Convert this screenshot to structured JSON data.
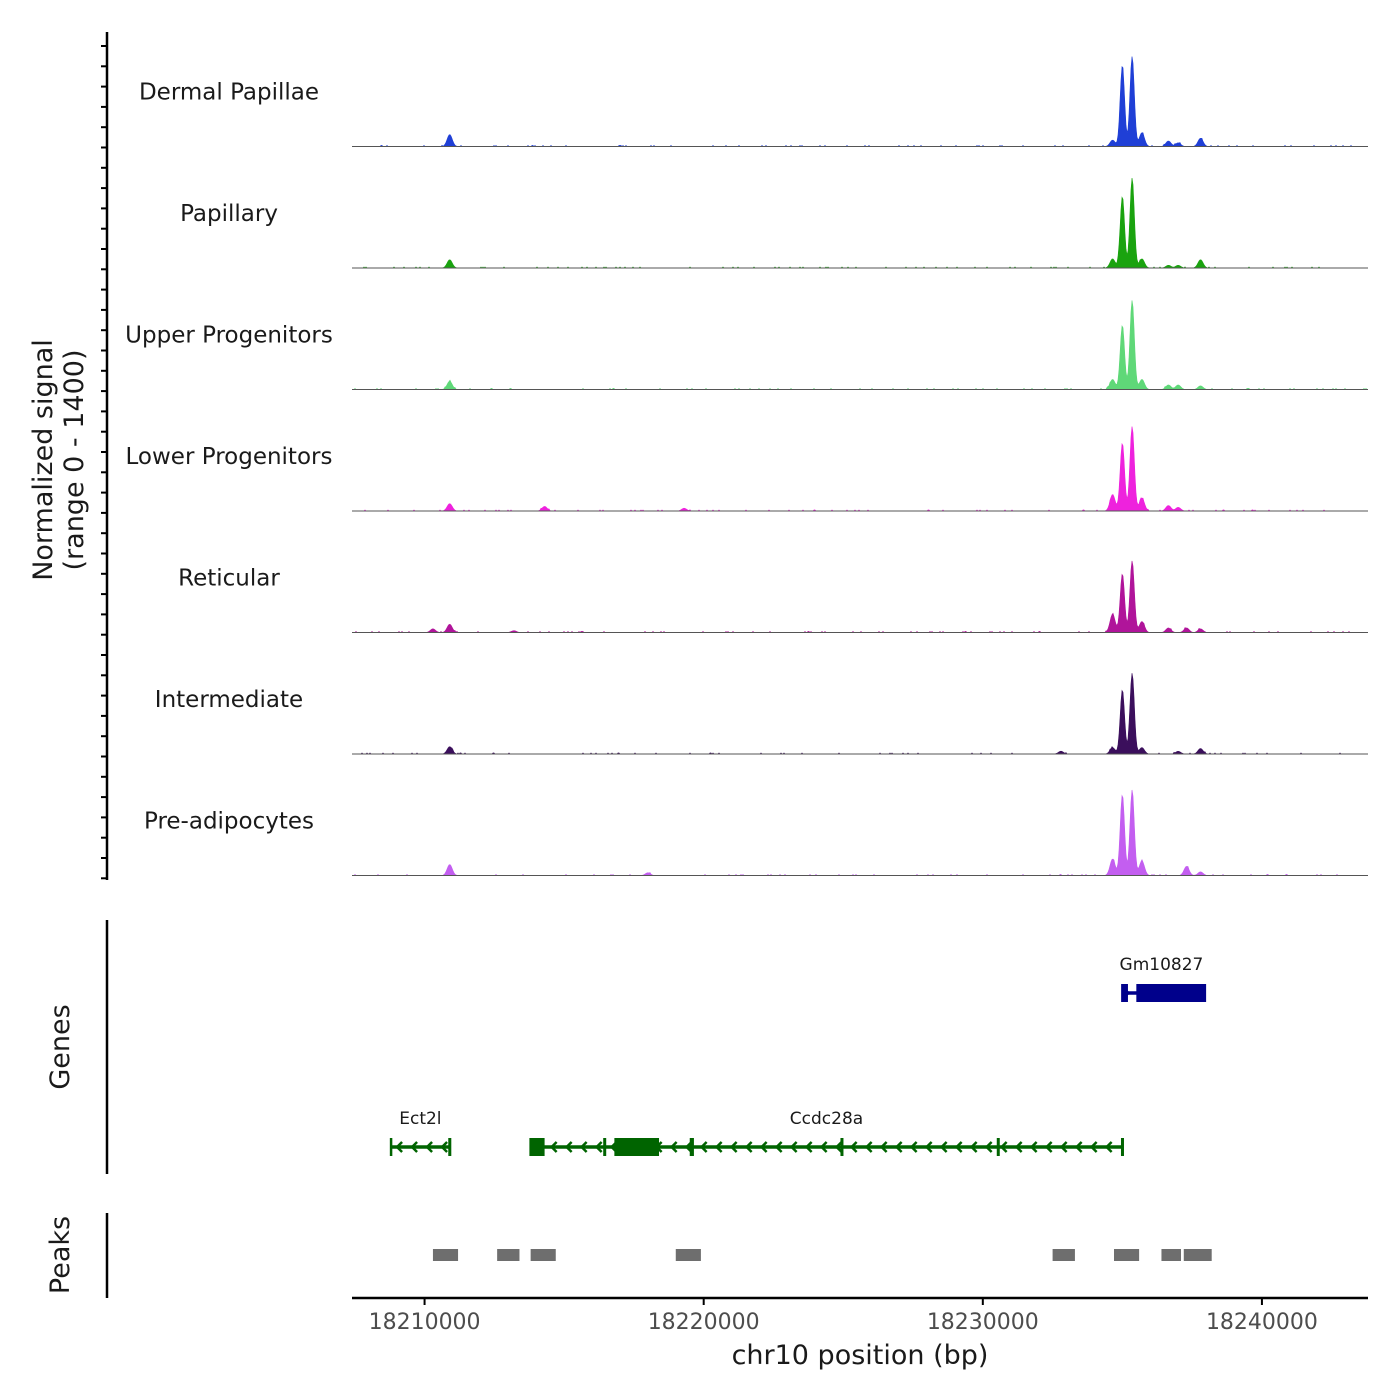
{
  "chart_data": {
    "type": "area",
    "title": "",
    "ylabel_line1": "Normalized signal",
    "ylabel_line2": "(range 0 - 1400)",
    "y_range": [
      0,
      1400
    ],
    "xlabel": "chr10 position (bp)",
    "xlim": [
      18207400,
      18243800
    ],
    "x_ticks": [
      18210000,
      18220000,
      18230000,
      18240000
    ],
    "x_tick_labels": [
      "18210000",
      "18220000",
      "18230000",
      "18240000"
    ],
    "genes_label": "Genes",
    "peaks_label": "Peaks",
    "tracks": [
      {
        "name": "Dermal Papillae",
        "color": "#1f3fd6",
        "peaks": [
          [
            18210900,
            0.13
          ],
          [
            18235000,
            0.88
          ],
          [
            18235350,
            0.98
          ],
          [
            18234650,
            0.07
          ],
          [
            18235700,
            0.15
          ],
          [
            18236650,
            0.06
          ],
          [
            18237000,
            0.04
          ],
          [
            18237800,
            0.09
          ]
        ]
      },
      {
        "name": "Papillary",
        "color": "#1aa30f",
        "peaks": [
          [
            18210900,
            0.09
          ],
          [
            18235000,
            0.78
          ],
          [
            18235350,
            0.98
          ],
          [
            18234650,
            0.1
          ],
          [
            18235700,
            0.1
          ],
          [
            18236650,
            0.03
          ],
          [
            18237000,
            0.03
          ],
          [
            18237800,
            0.09
          ]
        ]
      },
      {
        "name": "Upper Progenitors",
        "color": "#5fd878",
        "peaks": [
          [
            18210900,
            0.09
          ],
          [
            18235000,
            0.7
          ],
          [
            18235350,
            0.97
          ],
          [
            18234650,
            0.11
          ],
          [
            18235700,
            0.11
          ],
          [
            18236650,
            0.05
          ],
          [
            18237000,
            0.05
          ],
          [
            18237800,
            0.04
          ]
        ]
      },
      {
        "name": "Lower Progenitors",
        "color": "#ee22dd",
        "peaks": [
          [
            18210900,
            0.08
          ],
          [
            18214300,
            0.05
          ],
          [
            18219300,
            0.03
          ],
          [
            18235000,
            0.74
          ],
          [
            18235350,
            0.92
          ],
          [
            18234650,
            0.18
          ],
          [
            18235700,
            0.14
          ],
          [
            18236650,
            0.06
          ],
          [
            18237000,
            0.04
          ]
        ]
      },
      {
        "name": "Reticular",
        "color": "#b0149a",
        "peaks": [
          [
            18210300,
            0.04
          ],
          [
            18210900,
            0.09
          ],
          [
            18213200,
            0.02
          ],
          [
            18235000,
            0.64
          ],
          [
            18235350,
            0.78
          ],
          [
            18234650,
            0.2
          ],
          [
            18235700,
            0.12
          ],
          [
            18236650,
            0.05
          ],
          [
            18237300,
            0.05
          ],
          [
            18237800,
            0.04
          ]
        ]
      },
      {
        "name": "Intermediate",
        "color": "#3b0f5c",
        "peaks": [
          [
            18210900,
            0.08
          ],
          [
            18232800,
            0.03
          ],
          [
            18235000,
            0.7
          ],
          [
            18235350,
            0.88
          ],
          [
            18234650,
            0.07
          ],
          [
            18235700,
            0.07
          ],
          [
            18237000,
            0.03
          ],
          [
            18237800,
            0.06
          ]
        ]
      },
      {
        "name": "Pre-adipocytes",
        "color": "#c35ef0",
        "peaks": [
          [
            18210900,
            0.12
          ],
          [
            18218000,
            0.03
          ],
          [
            18235000,
            0.88
          ],
          [
            18235350,
            0.92
          ],
          [
            18234650,
            0.18
          ],
          [
            18235700,
            0.16
          ],
          [
            18237300,
            0.1
          ],
          [
            18237800,
            0.04
          ]
        ]
      }
    ],
    "genes": [
      {
        "name": "Gm10827",
        "strand": "+",
        "color": "#00008b",
        "row": 1,
        "start": 18235000,
        "end": 18237800,
        "exons": [
          [
            18235000,
            18235200
          ],
          [
            18235500,
            18238000
          ]
        ]
      },
      {
        "name": "Ect2l",
        "strand": "-",
        "color": "#006400",
        "row": 2,
        "start": 18208800,
        "end": 18210900,
        "exons": [
          [
            18210850,
            18210920
          ]
        ]
      },
      {
        "name": "Ccdc28a",
        "strand": "-",
        "color": "#006400",
        "row": 2,
        "start": 18213800,
        "end": 18235000,
        "exons": [
          [
            18213800,
            18214300
          ],
          [
            18216400,
            18216500
          ],
          [
            18216800,
            18218400
          ],
          [
            18219500,
            18219650
          ],
          [
            18224900,
            18225000
          ],
          [
            18230500,
            18230600
          ],
          [
            18234950,
            18235050
          ]
        ]
      }
    ],
    "peak_regions": [
      [
        18210300,
        18211200
      ],
      [
        18212600,
        18213400
      ],
      [
        18213800,
        18214700
      ],
      [
        18219000,
        18219900
      ],
      [
        18232500,
        18233300
      ],
      [
        18234700,
        18235600
      ],
      [
        18236400,
        18237100
      ],
      [
        18237200,
        18238200
      ]
    ]
  }
}
